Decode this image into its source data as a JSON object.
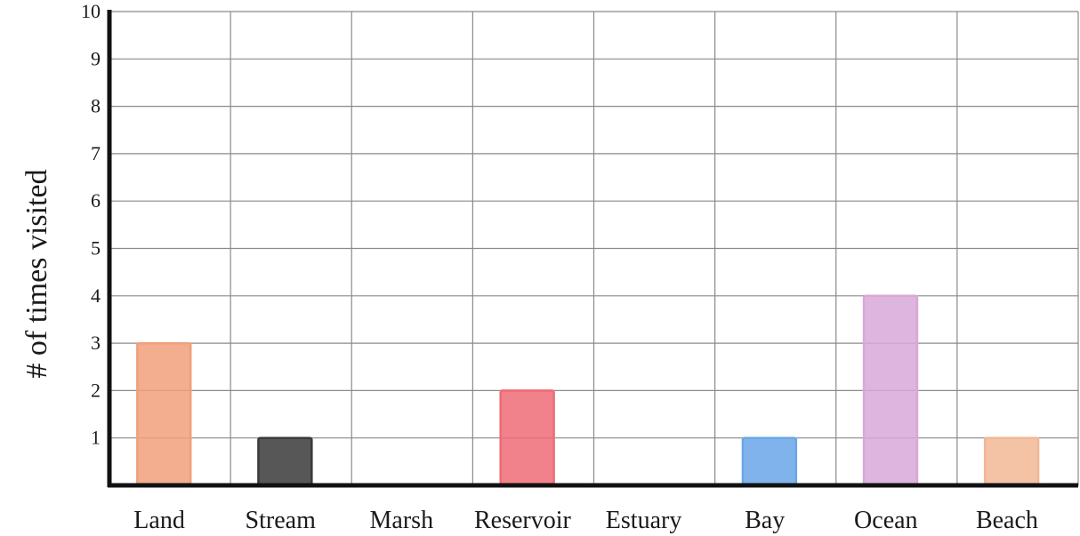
{
  "chart_data": {
    "type": "bar",
    "title": "",
    "xlabel": "",
    "ylabel": "# of times visited",
    "ylim": [
      0,
      10
    ],
    "y_ticks": [
      "1",
      "2",
      "3",
      "4",
      "5",
      "6",
      "7",
      "8",
      "9",
      "10"
    ],
    "grid": true,
    "categories": [
      "Land",
      "Stream",
      "Marsh",
      "Reservoir",
      "Estuary",
      "Bay",
      "Ocean",
      "Beach"
    ],
    "values": [
      3,
      1,
      0,
      2,
      0,
      1,
      4,
      1
    ],
    "bar_colors": [
      "#f0a07a",
      "#3a3a3a",
      "#cccccc",
      "#ee6b75",
      "#cccccc",
      "#6aa6e8",
      "#d8a8d8",
      "#f2b896"
    ]
  }
}
